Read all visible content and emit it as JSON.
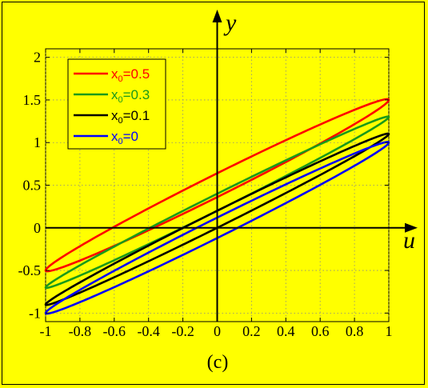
{
  "chart_data": {
    "type": "line",
    "title": "",
    "panel_label": "(c)",
    "xlabel": "u",
    "ylabel": "y",
    "xlim": [
      -1,
      1
    ],
    "ylim": [
      -1.1,
      2.1
    ],
    "grid": true,
    "legend_position": "top-left",
    "xticks": [
      -1,
      -0.8,
      -0.6,
      -0.4,
      -0.2,
      0,
      0.2,
      0.4,
      0.6,
      0.8,
      1
    ],
    "xtick_labels": [
      "-1",
      "-0.8",
      "-0.6",
      "-0.4",
      "-0.2",
      "0",
      "0.2",
      "0.4",
      "0.6",
      "0.8",
      "1"
    ],
    "yticks": [
      -1,
      -0.5,
      0,
      0.5,
      1,
      1.5,
      2
    ],
    "ytick_labels": [
      "-1",
      "-0.5",
      "0",
      "0.5",
      "1",
      "1.5",
      "2"
    ],
    "series": [
      {
        "name": "x0=0.5",
        "label_main": "x",
        "label_sub": "0",
        "label_rest": "=0.5",
        "color": "#ff0000",
        "x0": 0.5,
        "loop_width": 0.14
      },
      {
        "name": "x0=0.3",
        "label_main": "x",
        "label_sub": "0",
        "label_rest": "=0.3",
        "color": "#1a9a1a",
        "x0": 0.3,
        "loop_width": 0.1
      },
      {
        "name": "x0=0.1",
        "label_main": "x",
        "label_sub": "0",
        "label_rest": "=0.1",
        "color": "#000000",
        "x0": 0.1,
        "loop_width": 0.1
      },
      {
        "name": "x0=0",
        "label_main": "x",
        "label_sub": "0",
        "label_rest": "=0",
        "color": "#0000ff",
        "x0": 0,
        "loop_width": 0.12
      }
    ]
  }
}
